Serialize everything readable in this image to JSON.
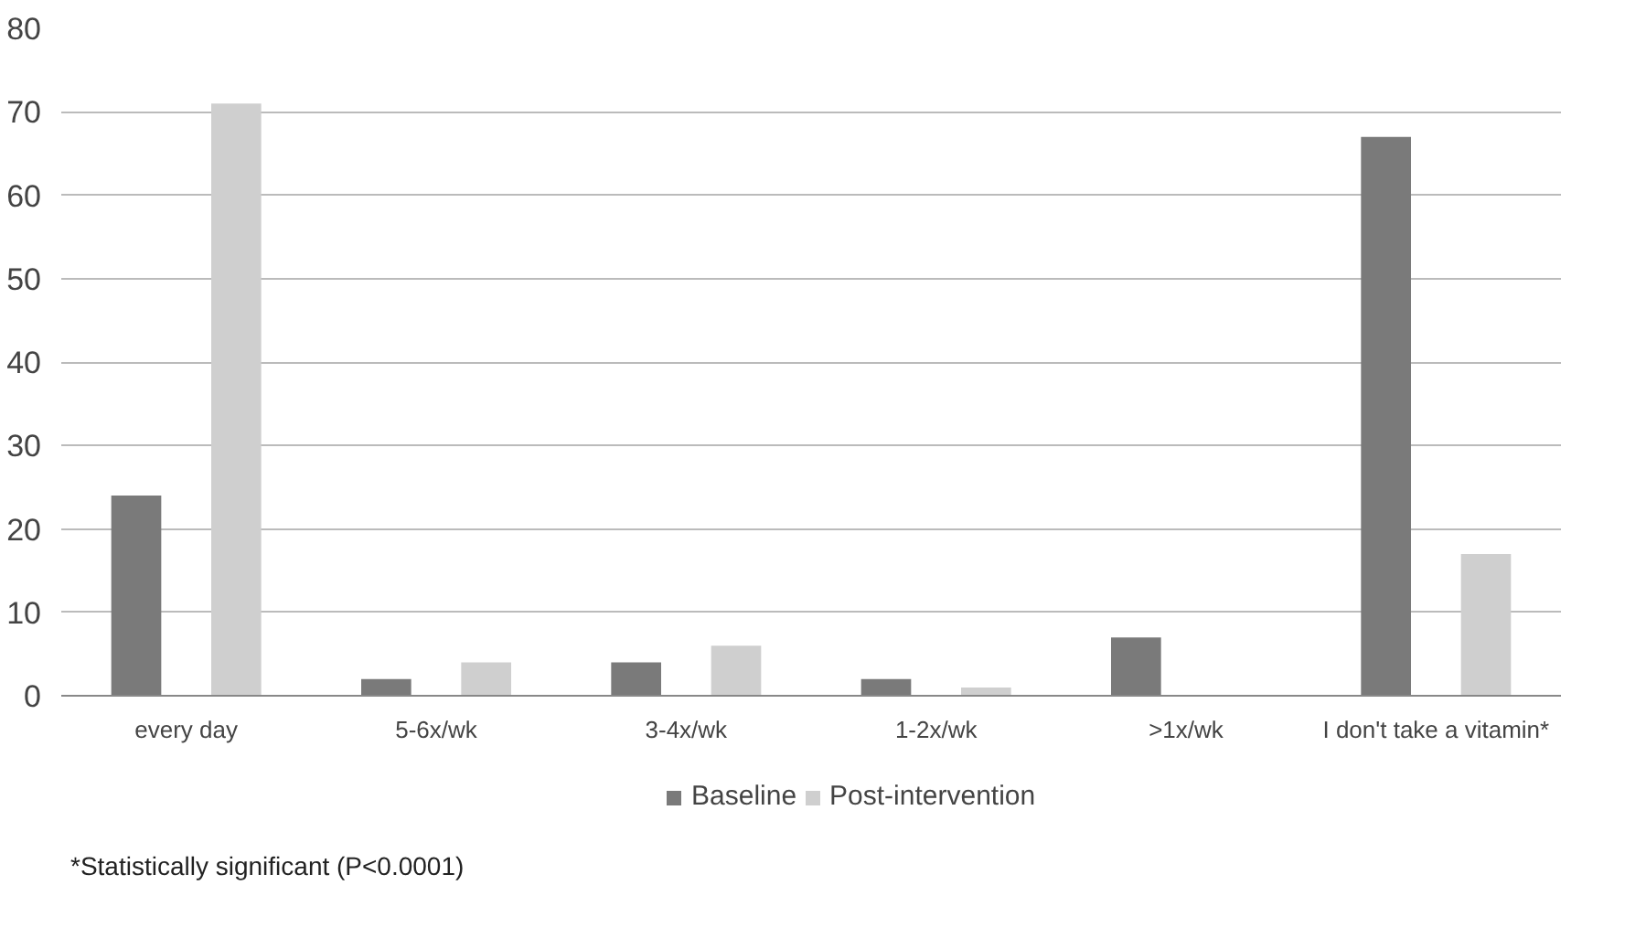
{
  "chart_data": {
    "type": "bar",
    "categories": [
      "every day",
      "5-6x/wk",
      "3-4x/wk",
      "1-2x/wk",
      ">1x/wk",
      "I don't take a vitamin*"
    ],
    "series": [
      {
        "name": "Baseline",
        "color": "#7a7a7a",
        "values": [
          24,
          2,
          4,
          2,
          7,
          67
        ]
      },
      {
        "name": "Post-intervention",
        "color": "#cfcfcf",
        "values": [
          71,
          4,
          6,
          1,
          0,
          17
        ]
      }
    ],
    "ylim": [
      0,
      80
    ],
    "yticks": [
      0,
      10,
      20,
      30,
      40,
      50,
      60,
      70,
      80
    ],
    "grid": "y",
    "legend": "bottom",
    "annotations": [
      "*Statistically significant (P<0.0001)"
    ]
  }
}
